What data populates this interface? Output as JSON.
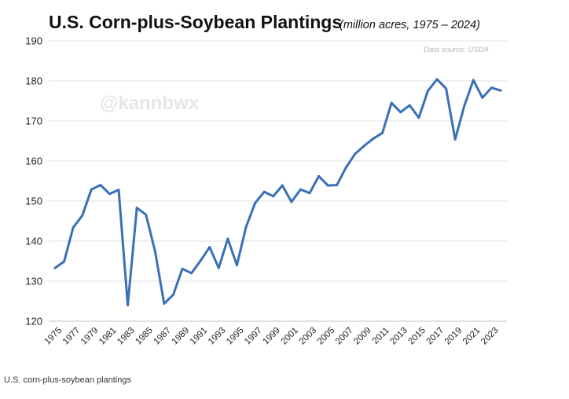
{
  "chart_data": {
    "type": "line",
    "title": "U.S. Corn-plus-Soybean Plantings",
    "subtitle": "(million acres, 1975 – 2024)",
    "source_note": "Data source: USDA",
    "watermark": "@kannbwx",
    "xlabel": "",
    "ylabel": "",
    "ylim": [
      120,
      190
    ],
    "yticks": [
      120,
      130,
      140,
      150,
      160,
      170,
      180,
      190
    ],
    "xtick_labels": [
      "1975",
      "1977",
      "1979",
      "1981",
      "1983",
      "1985",
      "1987",
      "1989",
      "1991",
      "1993",
      "1995",
      "1997",
      "1999",
      "2001",
      "2003",
      "2005",
      "2007",
      "2009",
      "2011",
      "2013",
      "2015",
      "2017",
      "2019",
      "2021",
      "2023"
    ],
    "grid": true,
    "legend": "none",
    "color": "#3a70b6",
    "x": [
      1975,
      1976,
      1977,
      1978,
      1979,
      1980,
      1981,
      1982,
      1983,
      1984,
      1985,
      1986,
      1987,
      1988,
      1989,
      1990,
      1991,
      1992,
      1993,
      1994,
      1995,
      1996,
      1997,
      1998,
      1999,
      2000,
      2001,
      2002,
      2003,
      2004,
      2005,
      2006,
      2007,
      2008,
      2009,
      2010,
      2011,
      2012,
      2013,
      2014,
      2015,
      2016,
      2017,
      2018,
      2019,
      2020,
      2021,
      2022,
      2023,
      2024
    ],
    "values": [
      133.3,
      134.9,
      143.4,
      146.4,
      152.9,
      154.0,
      151.8,
      152.8,
      124.0,
      148.3,
      146.6,
      137.5,
      124.4,
      126.6,
      133.1,
      132.0,
      135.1,
      138.5,
      133.3,
      140.6,
      134.0,
      143.5,
      149.5,
      152.3,
      151.2,
      153.9,
      149.8,
      152.9,
      152.0,
      156.2,
      153.9,
      154.0,
      158.4,
      161.8,
      163.8,
      165.6,
      167.0,
      174.5,
      172.2,
      173.9,
      170.8,
      177.5,
      180.4,
      178.1,
      165.4,
      173.7,
      180.2,
      175.8,
      178.3,
      177.6
    ]
  },
  "caption": "U.S. corn-plus-soybean plantings"
}
